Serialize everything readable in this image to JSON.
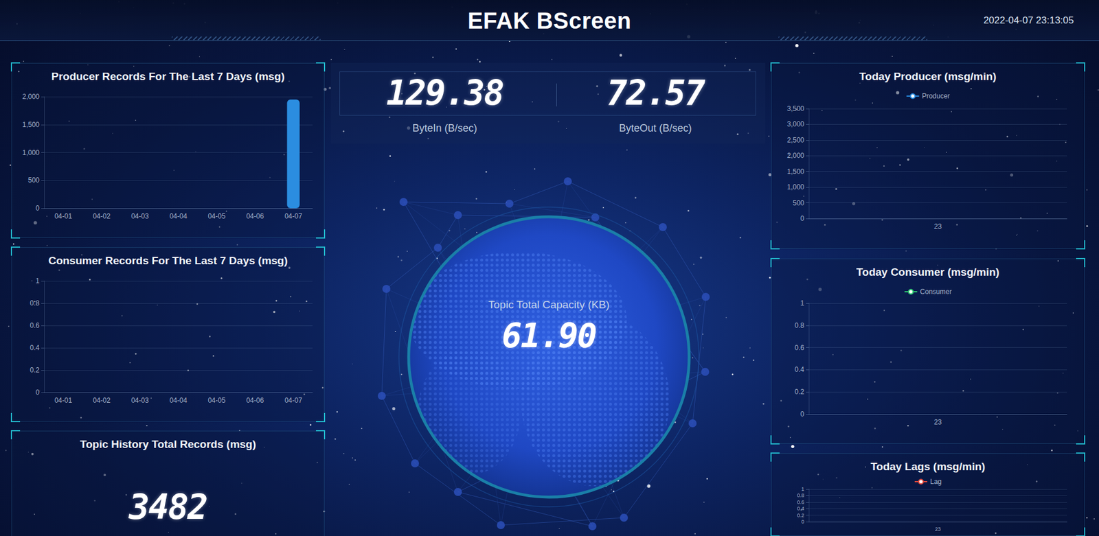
{
  "header": {
    "title": "EFAK BScreen",
    "datetime": "2022-04-07 23:13:05"
  },
  "throughput": [
    {
      "value": "129.38",
      "label": "ByteIn (B/sec)"
    },
    {
      "value": "72.57",
      "label": "ByteOut (B/sec)"
    }
  ],
  "capacity": {
    "label": "Topic Total Capacity (KB)",
    "value": "61.90"
  },
  "history": {
    "title": "Topic History Total Records (msg)",
    "value": "3482"
  },
  "chart_data": [
    {
      "type": "bar",
      "title": "Producer Records For The Last 7 Days (msg)",
      "categories": [
        "04-01",
        "04-02",
        "04-03",
        "04-04",
        "04-05",
        "04-06",
        "04-07"
      ],
      "values": [
        0,
        0,
        0,
        0,
        0,
        0,
        1950
      ],
      "color": "#2b8de0",
      "ylim": [
        0,
        2000
      ],
      "yticks": [
        0,
        500,
        {
          "value": 1000,
          "label": "1,000"
        },
        {
          "value": 1500,
          "label": "1,500"
        },
        {
          "value": 2000,
          "label": "2,000"
        }
      ],
      "grid": true
    },
    {
      "type": "bar",
      "title": "Consumer Records For The Last 7 Days (msg)",
      "categories": [
        "04-01",
        "04-02",
        "04-03",
        "04-04",
        "04-05",
        "04-06",
        "04-07"
      ],
      "values": [
        0,
        0,
        0,
        0,
        0,
        0,
        0
      ],
      "color": "#2b8de0",
      "ylim": [
        0,
        1
      ],
      "yticks": [
        0,
        0.2,
        0.4,
        0.6,
        0.8,
        1
      ],
      "grid": true
    },
    {
      "type": "line",
      "title": "Today Producer (msg/min)",
      "categories": [
        "23"
      ],
      "series": [
        {
          "name": "Producer",
          "color": "#2589e0",
          "values": [
            null
          ]
        }
      ],
      "ylim": [
        0,
        3500
      ],
      "yticks": [
        0,
        500,
        {
          "value": 1000,
          "label": "1,000"
        },
        {
          "value": 1500,
          "label": "1,500"
        },
        {
          "value": 2000,
          "label": "2,000"
        },
        {
          "value": 2500,
          "label": "2,500"
        },
        {
          "value": 3000,
          "label": "3,000"
        },
        {
          "value": 3500,
          "label": "3,500"
        }
      ],
      "legend": "top",
      "grid": true
    },
    {
      "type": "line",
      "title": "Today Consumer (msg/min)",
      "categories": [
        "23"
      ],
      "series": [
        {
          "name": "Consumer",
          "color": "#2ecc71",
          "values": [
            0
          ]
        }
      ],
      "ylim": [
        0,
        1
      ],
      "yticks": [
        0,
        0.2,
        0.4,
        0.6,
        0.8,
        1
      ],
      "legend": "top",
      "grid": true
    },
    {
      "type": "line",
      "title": "Today Lags (msg/min)",
      "categories": [
        "23"
      ],
      "series": [
        {
          "name": "Lag",
          "color": "#e0483c",
          "values": [
            0
          ]
        }
      ],
      "ylim": [
        0,
        1
      ],
      "yticks": [
        0,
        0.2,
        0.4,
        0.6,
        0.8,
        1
      ],
      "legend": "top",
      "grid": true
    }
  ]
}
